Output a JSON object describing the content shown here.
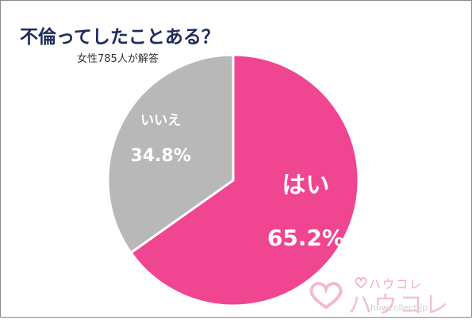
{
  "header": {
    "title": "不倫ってしたことある？",
    "subtitle": "女性785人が解答"
  },
  "chart_data": {
    "type": "pie",
    "title": "不倫ってしたことある？",
    "subtitle": "女性785人が解答",
    "slices": [
      {
        "label": "はい",
        "value": 65.2,
        "value_label": "65.2%",
        "color": "#f04591"
      },
      {
        "label": "いいえ",
        "value": 34.8,
        "value_label": "34.8%",
        "color": "#b8b8b8"
      }
    ]
  },
  "logo": {
    "brand_small": "ハウコレ",
    "brand_big": "ハウコレ",
    "domain_text": "howcollect.jp",
    "heart_color": "#f7b8d2"
  }
}
